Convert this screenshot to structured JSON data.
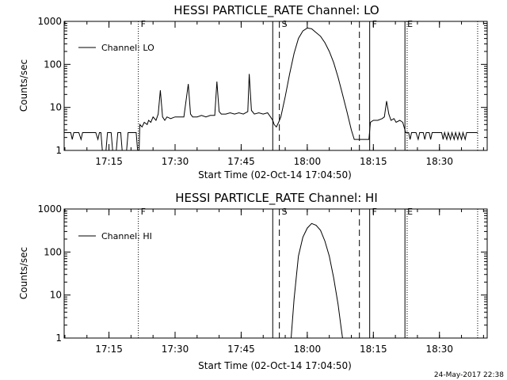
{
  "footer": {
    "timestamp": "24-May-2017 22:38"
  },
  "chart_data": [
    {
      "type": "line",
      "title": "HESSI PARTICLE_RATE Channel: LO",
      "xlabel": "Start Time (02-Oct-14 17:04:50)",
      "ylabel": "Counts/sec",
      "yscale": "log",
      "xlim": [
        "17:04:50",
        "18:40:50"
      ],
      "ylim": [
        1,
        1000
      ],
      "xticks": [
        "17:15",
        "17:30",
        "17:45",
        "18:00",
        "18:15",
        "18:30"
      ],
      "yticks": [
        "1",
        "10",
        "100",
        "1000"
      ],
      "legend": {
        "label": "Channel: LO",
        "position": "top-left"
      },
      "markers": [
        {
          "label": "F",
          "time": "17:21:40",
          "style": "dotted"
        },
        {
          "label": "",
          "time": "17:52:10",
          "style": "solid"
        },
        {
          "label": "S",
          "time": "17:53:40",
          "style": "dashed"
        },
        {
          "label": "",
          "time": "18:11:50",
          "style": "dashed"
        },
        {
          "label": "F",
          "time": "18:14:10",
          "style": "solid"
        },
        {
          "label": "E",
          "time": "18:22:10",
          "style": "solid"
        },
        {
          "label": "",
          "time": "18:22:40",
          "style": "dotted"
        },
        {
          "label": "",
          "time": "18:38:40",
          "style": "dotted"
        }
      ],
      "series": [
        {
          "points": [
            [
              "17:04:50",
              2.6
            ],
            [
              "17:06:20",
              2.6
            ],
            [
              "17:06:40",
              1.8
            ],
            [
              "17:07:00",
              2.6
            ],
            [
              "17:08:10",
              2.6
            ],
            [
              "17:08:40",
              1.8
            ],
            [
              "17:09:00",
              2.6
            ],
            [
              "17:12:00",
              2.6
            ],
            [
              "17:12:30",
              1.8
            ],
            [
              "17:12:50",
              2.6
            ],
            [
              "17:13:10",
              2.6
            ],
            [
              "17:13:30",
              1.0
            ],
            [
              "17:14:20",
              1.0
            ],
            [
              "17:14:40",
              2.6
            ],
            [
              "17:15:30",
              2.6
            ],
            [
              "17:15:50",
              1.0
            ],
            [
              "17:16:40",
              1.0
            ],
            [
              "17:17:00",
              2.6
            ],
            [
              "17:17:40",
              2.6
            ],
            [
              "17:18:00",
              1.0
            ],
            [
              "17:19:00",
              1.0
            ],
            [
              "17:19:20",
              2.6
            ],
            [
              "17:21:10",
              2.6
            ],
            [
              "17:21:30",
              1.0
            ],
            [
              "17:21:50",
              1.0
            ],
            [
              "17:22:00",
              4.0
            ],
            [
              "17:22:30",
              3.5
            ],
            [
              "17:23:00",
              4.5
            ],
            [
              "17:23:40",
              4.0
            ],
            [
              "17:24:00",
              5.0
            ],
            [
              "17:24:30",
              4.5
            ],
            [
              "17:25:00",
              6.0
            ],
            [
              "17:25:40",
              5.0
            ],
            [
              "17:26:10",
              7.0
            ],
            [
              "17:26:40",
              25.0
            ],
            [
              "17:27:10",
              6.0
            ],
            [
              "17:27:40",
              5.0
            ],
            [
              "17:28:10",
              6.0
            ],
            [
              "17:29:00",
              5.5
            ],
            [
              "17:30:00",
              6.0
            ],
            [
              "17:31:00",
              6.0
            ],
            [
              "17:32:00",
              6.0
            ],
            [
              "17:33:00",
              35.0
            ],
            [
              "17:33:30",
              7.0
            ],
            [
              "17:34:00",
              6.0
            ],
            [
              "17:35:00",
              6.0
            ],
            [
              "17:36:00",
              6.5
            ],
            [
              "17:37:00",
              6.0
            ],
            [
              "17:38:00",
              6.5
            ],
            [
              "17:39:00",
              6.5
            ],
            [
              "17:39:30",
              40.0
            ],
            [
              "17:40:00",
              8.0
            ],
            [
              "17:40:30",
              7.0
            ],
            [
              "17:41:30",
              7.0
            ],
            [
              "17:42:30",
              7.5
            ],
            [
              "17:43:30",
              7.0
            ],
            [
              "17:44:30",
              7.5
            ],
            [
              "17:45:30",
              7.0
            ],
            [
              "17:46:30",
              8.0
            ],
            [
              "17:46:50",
              60.0
            ],
            [
              "17:47:20",
              8.5
            ],
            [
              "17:48:00",
              7.0
            ],
            [
              "17:49:00",
              7.5
            ],
            [
              "17:50:00",
              7.0
            ],
            [
              "17:51:00",
              7.5
            ],
            [
              "17:51:40",
              6.0
            ],
            [
              "17:52:10",
              5.0
            ],
            [
              "17:52:30",
              4.0
            ],
            [
              "17:53:00",
              3.5
            ],
            [
              "17:53:30",
              4.5
            ],
            [
              "17:54:00",
              6.0
            ],
            [
              "17:55:00",
              18.0
            ],
            [
              "17:56:00",
              60.0
            ],
            [
              "17:57:00",
              180.0
            ],
            [
              "17:58:00",
              400.0
            ],
            [
              "17:59:00",
              600.0
            ],
            [
              "18:00:00",
              700.0
            ],
            [
              "18:01:00",
              670.0
            ],
            [
              "18:02:00",
              550.0
            ],
            [
              "18:03:00",
              450.0
            ],
            [
              "18:04:00",
              320.0
            ],
            [
              "18:05:00",
              200.0
            ],
            [
              "18:06:00",
              110.0
            ],
            [
              "18:07:00",
              50.0
            ],
            [
              "18:08:00",
              20.0
            ],
            [
              "18:09:00",
              8.0
            ],
            [
              "18:10:00",
              3.0
            ],
            [
              "18:10:40",
              1.8
            ],
            [
              "18:11:30",
              1.8
            ],
            [
              "18:14:00",
              1.8
            ],
            [
              "18:14:20",
              4.5
            ],
            [
              "18:15:00",
              5.0
            ],
            [
              "18:16:00",
              5.0
            ],
            [
              "18:17:00",
              5.5
            ],
            [
              "18:17:30",
              6.0
            ],
            [
              "18:18:00",
              14.0
            ],
            [
              "18:18:30",
              7.0
            ],
            [
              "18:19:00",
              5.0
            ],
            [
              "18:19:40",
              5.5
            ],
            [
              "18:20:10",
              4.5
            ],
            [
              "18:21:00",
              5.0
            ],
            [
              "18:21:40",
              4.5
            ],
            [
              "18:22:20",
              2.6
            ],
            [
              "18:23:00",
              2.6
            ],
            [
              "18:23:20",
              1.8
            ],
            [
              "18:23:40",
              2.6
            ],
            [
              "18:24:40",
              2.6
            ],
            [
              "18:25:10",
              1.8
            ],
            [
              "18:25:30",
              2.6
            ],
            [
              "18:26:20",
              2.6
            ],
            [
              "18:26:40",
              1.8
            ],
            [
              "18:27:00",
              2.6
            ],
            [
              "18:27:40",
              2.6
            ],
            [
              "18:28:00",
              1.8
            ],
            [
              "18:28:20",
              2.6
            ],
            [
              "18:29:00",
              2.6
            ],
            [
              "18:30:30",
              2.6
            ],
            [
              "18:30:50",
              1.8
            ],
            [
              "18:31:10",
              2.6
            ],
            [
              "18:31:40",
              1.8
            ],
            [
              "18:32:00",
              2.6
            ],
            [
              "18:32:30",
              1.8
            ],
            [
              "18:32:50",
              2.6
            ],
            [
              "18:33:20",
              1.8
            ],
            [
              "18:33:40",
              2.6
            ],
            [
              "18:34:10",
              1.8
            ],
            [
              "18:34:30",
              2.6
            ],
            [
              "18:35:00",
              1.8
            ],
            [
              "18:35:20",
              2.6
            ],
            [
              "18:35:50",
              1.8
            ],
            [
              "18:36:10",
              2.6
            ],
            [
              "18:38:40",
              2.6
            ]
          ]
        }
      ]
    },
    {
      "type": "line",
      "title": "HESSI PARTICLE_RATE Channel: HI",
      "xlabel": "Start Time (02-Oct-14 17:04:50)",
      "ylabel": "Counts/sec",
      "yscale": "log",
      "xlim": [
        "17:04:50",
        "18:40:50"
      ],
      "ylim": [
        1,
        1000
      ],
      "xticks": [
        "17:15",
        "17:30",
        "17:45",
        "18:00",
        "18:15",
        "18:30"
      ],
      "yticks": [
        "1",
        "10",
        "100",
        "1000"
      ],
      "legend": {
        "label": "Channel: HI",
        "position": "top-left"
      },
      "markers": [
        {
          "label": "F",
          "time": "17:21:40",
          "style": "dotted"
        },
        {
          "label": "",
          "time": "17:52:10",
          "style": "solid"
        },
        {
          "label": "S",
          "time": "17:53:40",
          "style": "dashed"
        },
        {
          "label": "",
          "time": "18:11:50",
          "style": "dashed"
        },
        {
          "label": "F",
          "time": "18:14:10",
          "style": "solid"
        },
        {
          "label": "E",
          "time": "18:22:10",
          "style": "solid"
        },
        {
          "label": "",
          "time": "18:22:40",
          "style": "dotted"
        },
        {
          "label": "",
          "time": "18:38:40",
          "style": "dotted"
        }
      ],
      "series": [
        {
          "points": [
            [
              "17:56:20",
              1.0
            ],
            [
              "17:57:00",
              8.0
            ],
            [
              "17:58:00",
              80.0
            ],
            [
              "17:59:00",
              220.0
            ],
            [
              "18:00:00",
              360.0
            ],
            [
              "18:01:00",
              460.0
            ],
            [
              "18:02:00",
              420.0
            ],
            [
              "18:03:00",
              320.0
            ],
            [
              "18:04:00",
              180.0
            ],
            [
              "18:05:00",
              80.0
            ],
            [
              "18:06:00",
              25.0
            ],
            [
              "18:07:00",
              6.0
            ],
            [
              "18:07:40",
              1.8
            ],
            [
              "18:08:00",
              1.0
            ]
          ]
        }
      ]
    }
  ]
}
